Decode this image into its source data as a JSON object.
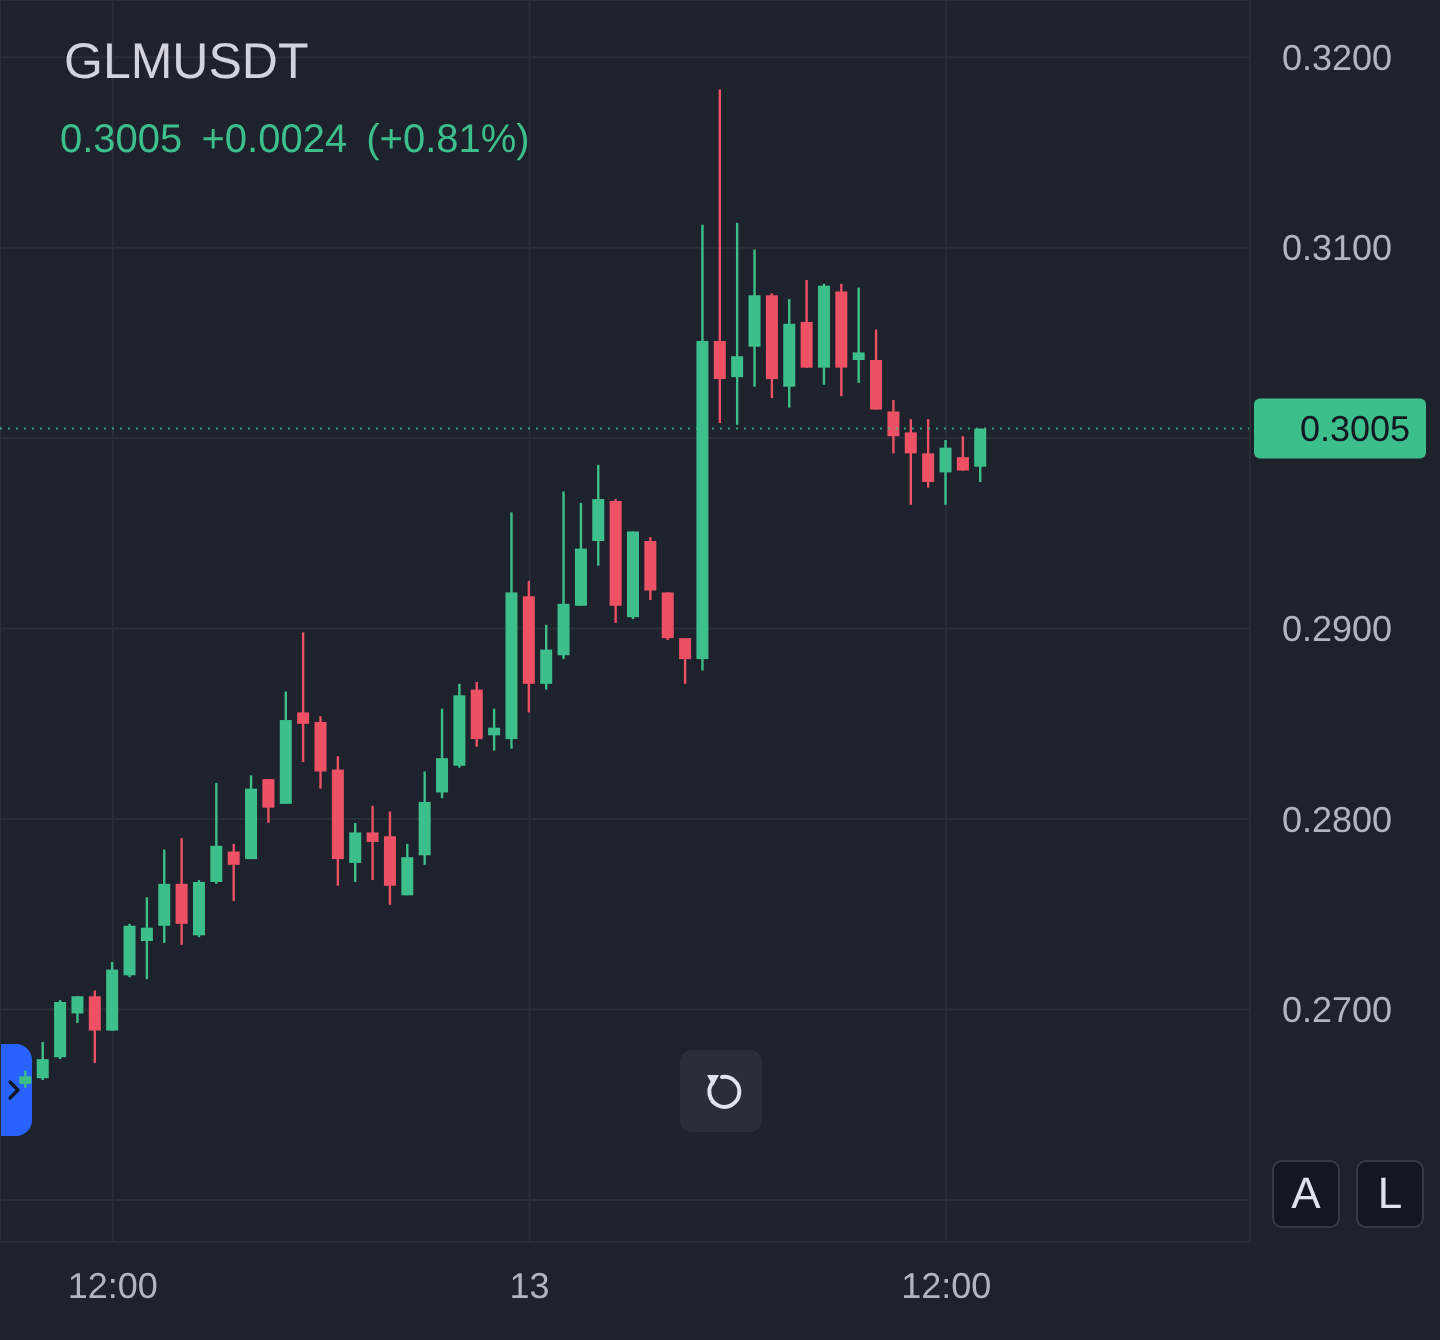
{
  "chart_data": {
    "type": "candlestick",
    "title": "GLMUSDT",
    "subtitle": "0.3005 +0.0024 (+0.81%)",
    "annotations": [
      "A",
      "L"
    ],
    "categories": [
      null,
      null,
      null,
      null,
      null,
      null,
      "12:00",
      null,
      null,
      null,
      null,
      null,
      null,
      null,
      null,
      null,
      null,
      null,
      null,
      null,
      null,
      null,
      null,
      null,
      null,
      null,
      null,
      null,
      null,
      null,
      "13",
      null,
      null,
      null,
      null,
      null,
      null,
      null,
      null,
      null,
      null,
      null,
      null,
      null,
      null,
      null,
      null,
      null,
      null,
      null,
      null,
      null,
      null,
      null,
      "12:00",
      null,
      null,
      null,
      null,
      null,
      null,
      null,
      null,
      null,
      null,
      null,
      null,
      null,
      null,
      null,
      null,
      null
    ],
    "ohlc": [
      null,
      [
        0.2661,
        0.2668,
        0.2659,
        0.2665
      ],
      [
        0.2664,
        0.2683,
        0.2663,
        0.2674
      ],
      [
        0.2675,
        0.2705,
        0.2674,
        0.2704
      ],
      [
        0.2698,
        0.2707,
        0.2693,
        0.2707
      ],
      [
        0.2707,
        0.271,
        0.2672,
        0.2689
      ],
      [
        0.2689,
        0.2725,
        0.2689,
        0.2721
      ],
      [
        0.2718,
        0.2745,
        0.2717,
        0.2744
      ],
      [
        0.2736,
        0.2759,
        0.2716,
        0.2743
      ],
      [
        0.2744,
        0.2784,
        0.2735,
        0.2766
      ],
      [
        0.2766,
        0.279,
        0.2734,
        0.2745
      ],
      [
        0.2739,
        0.2768,
        0.2738,
        0.2767
      ],
      [
        0.2767,
        0.2819,
        0.2766,
        0.2786
      ],
      [
        0.2783,
        0.2787,
        0.2757,
        0.2776
      ],
      [
        0.2779,
        0.2823,
        0.2779,
        0.2816
      ],
      [
        0.2821,
        0.2821,
        0.2798,
        0.2806
      ],
      [
        0.2808,
        0.2867,
        0.2808,
        0.2852
      ],
      [
        0.2856,
        0.2898,
        0.283,
        0.285
      ],
      [
        0.2851,
        0.2854,
        0.2816,
        0.2825
      ],
      [
        0.2826,
        0.2833,
        0.2765,
        0.2779
      ],
      [
        0.2777,
        0.2798,
        0.2767,
        0.2793
      ],
      [
        0.2793,
        0.2807,
        0.2768,
        0.2788
      ],
      [
        0.2791,
        0.2804,
        0.2755,
        0.2765
      ],
      [
        0.276,
        0.2787,
        0.276,
        0.278
      ],
      [
        0.2781,
        0.2825,
        0.2776,
        0.2809
      ],
      [
        0.2814,
        0.2858,
        0.2811,
        0.2832
      ],
      [
        0.2828,
        0.2871,
        0.2827,
        0.2865
      ],
      [
        0.2868,
        0.2872,
        0.2838,
        0.2842
      ],
      [
        0.2844,
        0.2858,
        0.2836,
        0.2848
      ],
      [
        0.2842,
        0.2961,
        0.2837,
        0.2919
      ],
      [
        0.2917,
        0.2925,
        0.2856,
        0.2871
      ],
      [
        0.2871,
        0.2902,
        0.2868,
        0.2889
      ],
      [
        0.2886,
        0.2972,
        0.2884,
        0.2913
      ],
      [
        0.2912,
        0.2966,
        0.2912,
        0.2942
      ],
      [
        0.2946,
        0.2986,
        0.2933,
        0.2968
      ],
      [
        0.2967,
        0.2968,
        0.2903,
        0.2912
      ],
      [
        0.2906,
        0.2951,
        0.2905,
        0.2951
      ],
      [
        0.2946,
        0.2948,
        0.2915,
        0.292
      ],
      [
        0.2919,
        0.2919,
        0.2894,
        0.2895
      ],
      [
        0.2895,
        0.2895,
        0.2871,
        0.2884
      ],
      [
        0.2884,
        0.3112,
        0.2878,
        0.3051
      ],
      [
        0.3051,
        0.3183,
        0.3008,
        0.3031
      ],
      [
        0.3032,
        0.3113,
        0.3007,
        0.3043
      ],
      [
        0.3048,
        0.3099,
        0.3027,
        0.3075
      ],
      [
        0.3075,
        0.3076,
        0.3021,
        0.3031
      ],
      [
        0.3027,
        0.3073,
        0.3016,
        0.306
      ],
      [
        0.3061,
        0.3083,
        0.3037,
        0.3037
      ],
      [
        0.3037,
        0.3081,
        0.3028,
        0.308
      ],
      [
        0.3077,
        0.3081,
        0.3022,
        0.3037
      ],
      [
        0.3041,
        0.3079,
        0.3029,
        0.3045
      ],
      [
        0.3041,
        0.3057,
        0.3015,
        0.3015
      ],
      [
        0.3014,
        0.302,
        0.2992,
        0.3001
      ],
      [
        0.3003,
        0.301,
        0.2965,
        0.2992
      ],
      [
        0.2992,
        0.301,
        0.2974,
        0.2977
      ],
      [
        0.2982,
        0.2999,
        0.2965,
        0.2995
      ],
      [
        0.299,
        0.3001,
        0.2983,
        0.2983
      ],
      [
        0.2985,
        0.3005,
        0.2977,
        0.3005
      ],
      null,
      null,
      null,
      null,
      null,
      null,
      null,
      null,
      null,
      null,
      null,
      null,
      null,
      null,
      null
    ],
    "colors": [
      null,
      "#3cbf8b",
      "#3cbf8b",
      "#3cbf8b",
      "#3cbf8b",
      "#ee5164",
      "#3cbf8b",
      "#3cbf8b",
      "#3cbf8b",
      "#3cbf8b",
      "#ee5164",
      "#3cbf8b",
      "#3cbf8b",
      "#ee5164",
      "#3cbf8b",
      "#ee5164",
      "#3cbf8b",
      "#ee5164",
      "#ee5164",
      "#ee5164",
      "#3cbf8b",
      "#ee5164",
      "#ee5164",
      "#3cbf8b",
      "#3cbf8b",
      "#3cbf8b",
      "#3cbf8b",
      "#ee5164",
      "#3cbf8b",
      "#3cbf8b",
      "#ee5164",
      "#3cbf8b",
      "#3cbf8b",
      "#3cbf8b",
      "#3cbf8b",
      "#ee5164",
      "#3cbf8b",
      "#ee5164",
      "#ee5164",
      "#ee5164",
      "#3cbf8b",
      "#ee5164",
      "#3cbf8b",
      "#3cbf8b",
      "#ee5164",
      "#3cbf8b",
      "#ee5164",
      "#3cbf8b",
      "#ee5164",
      "#3cbf8b",
      "#ee5164",
      "#ee5164",
      "#ee5164",
      "#ee5164",
      "#3cbf8b",
      "#ee5164",
      "#3cbf8b",
      null,
      null,
      null,
      null,
      null,
      null,
      null,
      null,
      null,
      null,
      null,
      null,
      null,
      null,
      null
    ],
    "ylim": [
      0.2578,
      0.323
    ],
    "yticks": [
      {
        "value": 0.26,
        "label": null
      },
      {
        "value": 0.27,
        "label": "0.2700"
      },
      {
        "value": 0.28,
        "label": "0.2800"
      },
      {
        "value": 0.29,
        "label": "0.2900"
      },
      {
        "value": 0.3,
        "label": null
      },
      {
        "value": 0.31,
        "label": "0.3100"
      },
      {
        "value": 0.32,
        "label": "0.3200"
      }
    ],
    "grid": true,
    "ref_lines": [
      {
        "axis": "y",
        "value": 0.3005,
        "label": "0.3005",
        "color": "#3cbf8b",
        "line_style": "dotted"
      }
    ]
  }
}
